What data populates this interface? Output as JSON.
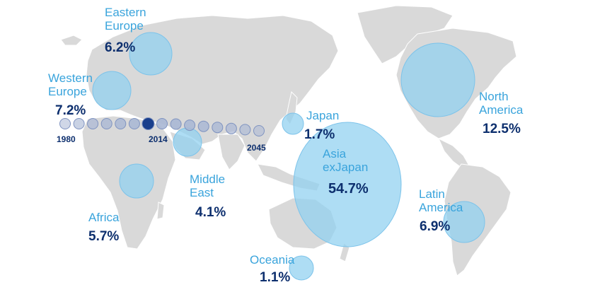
{
  "regions": [
    {
      "id": "eastern-europe",
      "name": "Eastern\nEurope",
      "value": "6.2%"
    },
    {
      "id": "western-europe",
      "name": "Western\nEurope",
      "value": "7.2%"
    },
    {
      "id": "japan",
      "name": "Japan",
      "value": "1.7%"
    },
    {
      "id": "asia-exjapan",
      "name": "Asia\nexJapan",
      "value": "54.7%"
    },
    {
      "id": "north-america",
      "name": "North\nAmerica",
      "value": "12.5%"
    },
    {
      "id": "middle-east",
      "name": "Middle\nEast",
      "value": "4.1%"
    },
    {
      "id": "africa",
      "name": "Africa",
      "value": "5.7%"
    },
    {
      "id": "latin-america",
      "name": "Latin\nAmerica",
      "value": "6.9%"
    },
    {
      "id": "oceania",
      "name": "Oceania",
      "value": "1.1%"
    }
  ],
  "timeline": {
    "start": "1980",
    "highlight": "2014",
    "end": "2045",
    "dot_count": 15,
    "highlight_index": 6
  },
  "colors": {
    "land": "#d9d9d9",
    "bubble": "#8fd0f0",
    "label": "#3aa4dc",
    "value": "#0d2f6e",
    "timeline_dot": "#a9b7d4",
    "timeline_highlight": "#1a3f8c"
  }
}
